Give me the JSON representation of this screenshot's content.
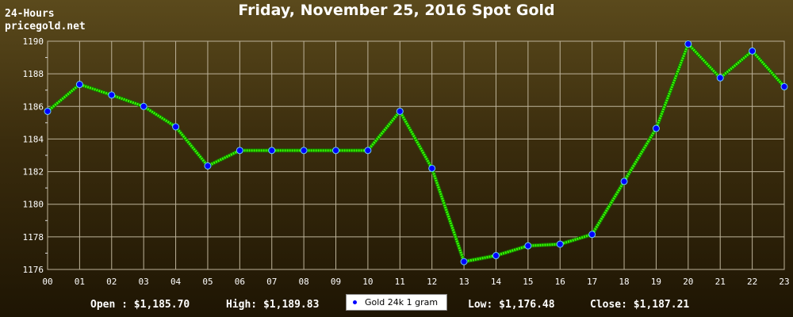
{
  "header": {
    "corner_line1": "24-Hours",
    "corner_line2": "pricegold.net"
  },
  "chart_data": {
    "type": "line",
    "title": "Friday, November 25, 2016 Spot Gold",
    "categories": [
      "00",
      "01",
      "02",
      "03",
      "04",
      "05",
      "06",
      "07",
      "08",
      "09",
      "10",
      "11",
      "12",
      "13",
      "14",
      "15",
      "16",
      "17",
      "18",
      "19",
      "20",
      "21",
      "22",
      "23"
    ],
    "series": [
      {
        "name": "Gold 24k 1 gram",
        "values": [
          1185.7,
          1187.35,
          1186.7,
          1186.0,
          1184.75,
          1182.35,
          1183.3,
          1183.3,
          1183.3,
          1183.3,
          1183.3,
          1185.7,
          1182.2,
          1176.48,
          1176.85,
          1177.45,
          1177.55,
          1178.15,
          1181.4,
          1184.65,
          1189.83,
          1187.75,
          1189.4,
          1187.21
        ],
        "color": "#33ff00",
        "marker_color": "#0000ff"
      }
    ],
    "ylim": [
      1176,
      1190
    ],
    "yticks": [
      "1176",
      "1178",
      "1180",
      "1182",
      "1184",
      "1186",
      "1188",
      "1190"
    ],
    "grid": true,
    "legend": "bottom-center"
  },
  "footer": {
    "open": "Open : $1,185.70",
    "high": "High: $1,189.83",
    "low": "Low: $1,176.48",
    "close": "Close: $1,187.21"
  }
}
